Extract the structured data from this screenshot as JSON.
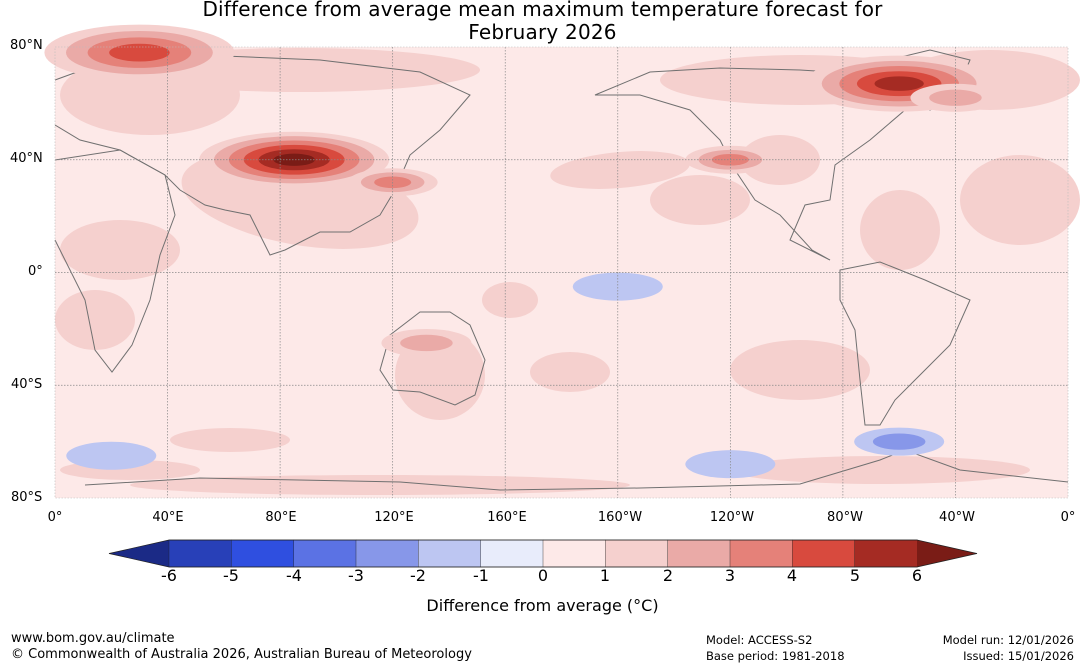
{
  "title_line1": "Difference from average mean maximum temperature forecast for",
  "title_line2": "February 2026",
  "lat_labels": [
    "80°N",
    "40°N",
    "0°",
    "40°S",
    "80°S"
  ],
  "lon_labels": [
    "0°",
    "40°E",
    "80°E",
    "120°E",
    "160°E",
    "160°W",
    "120°W",
    "80°W",
    "40°W",
    "0°"
  ],
  "colorbar": {
    "ticks": [
      "-6",
      "-5",
      "-4",
      "-3",
      "-2",
      "-1",
      "0",
      "1",
      "2",
      "3",
      "4",
      "5",
      "6"
    ],
    "colors": [
      "#1b2a86",
      "#2840b8",
      "#2f4fe0",
      "#5b72e4",
      "#8797e9",
      "#bdc6f2",
      "#e8ecfb",
      "#fde9e8",
      "#f5d0ce",
      "#eaaaa7",
      "#e58179",
      "#d84a3e",
      "#a52b23",
      "#7a1c16"
    ],
    "title": "Difference from average (°C)"
  },
  "footer": {
    "url": "www.bom.gov.au/climate",
    "copyright": "© Commonwealth of Australia 2026, Australian Bureau of Meteorology",
    "model": "Model: ACCESS-S2",
    "base_period": "Base period: 1981-2018",
    "model_run": "Model run: 12/01/2026",
    "issued": "Issued: 15/01/2026"
  },
  "chart_data": {
    "type": "heatmap",
    "title": "Difference from average mean maximum temperature forecast for February 2026",
    "projection": "equirectangular, central meridian 180°",
    "lon_range": [
      0,
      360
    ],
    "lat_range": [
      -80,
      80
    ],
    "colorbar_range": [
      -6,
      6
    ],
    "colorbar_unit": "°C",
    "anomaly_regions": [
      {
        "name": "Central Asia / Tibet / Mongolia",
        "lon": 85,
        "lat": 40,
        "value": 6
      },
      {
        "name": "Arctic north of Scandinavia",
        "lon": 30,
        "lat": 78,
        "value": 4
      },
      {
        "name": "Northeast Canada / Greenland margin",
        "lon": 300,
        "lat": 67,
        "value": 5
      },
      {
        "name": "Western USA",
        "lon": 240,
        "lat": 40,
        "value": 3
      },
      {
        "name": "Eastern China",
        "lon": 120,
        "lat": 32,
        "value": 3
      },
      {
        "name": "North Atlantic",
        "lon": 320,
        "lat": 62,
        "value": 2
      },
      {
        "name": "Australia interior",
        "lon": 132,
        "lat": -25,
        "value": 1.5
      },
      {
        "name": "Southern ocean near 60°W",
        "lon": 300,
        "lat": -60,
        "value": -2
      },
      {
        "name": "Southern ocean near 20°E",
        "lon": 20,
        "lat": -65,
        "value": -1
      },
      {
        "name": "Equatorial central Pacific",
        "lon": 200,
        "lat": -5,
        "value": -1
      },
      {
        "name": "Southern ocean near 120°W",
        "lon": 240,
        "lat": -68,
        "value": -1
      }
    ]
  }
}
